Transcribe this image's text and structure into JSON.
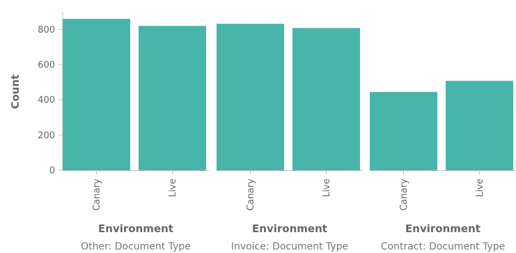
{
  "chart_data": {
    "type": "bar",
    "ylabel": "Count",
    "ylim": [
      0,
      900
    ],
    "yticks": [
      0,
      200,
      400,
      600,
      800
    ],
    "grid": false,
    "bar_color": "#48b5ab",
    "axis_color": "#bfbfbf",
    "text_color": "#666666",
    "facets": [
      {
        "label": "Other: Document Type",
        "xlabel": "Environment",
        "categories": [
          "Canary",
          "Live"
        ],
        "values": [
          860,
          820
        ]
      },
      {
        "label": "Invoice: Document Type",
        "xlabel": "Environment",
        "categories": [
          "Canary",
          "Live"
        ],
        "values": [
          832,
          808
        ]
      },
      {
        "label": "Contract: Document Type",
        "xlabel": "Environment",
        "categories": [
          "Canary",
          "Live"
        ],
        "values": [
          445,
          508
        ]
      }
    ]
  }
}
